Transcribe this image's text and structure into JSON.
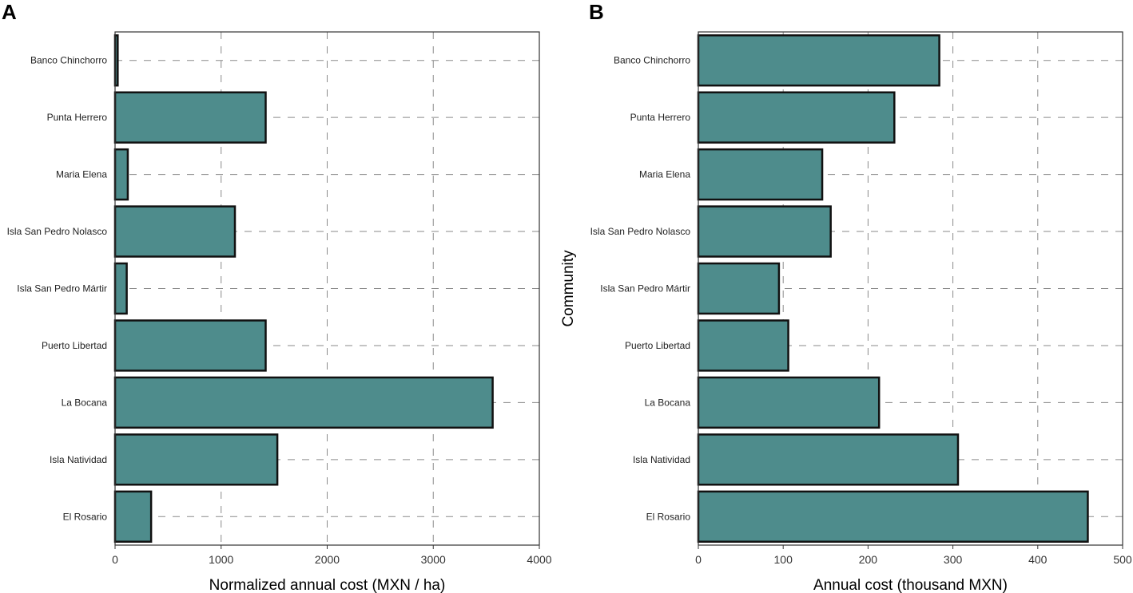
{
  "colors": {
    "bar_fill": "#4e8c8c",
    "bar_stroke": "#111111",
    "grid": "#8a8a8a"
  },
  "chart_data": [
    {
      "panel": "A",
      "type": "bar",
      "orientation": "horizontal",
      "categories": [
        "Banco Chinchorro",
        "Punta Herrero",
        "Maria Elena",
        "Isla San Pedro Nolasco",
        "Isla San Pedro Mártir",
        "Puerto Libertad",
        "La Bocana",
        "Isla Natividad",
        "El Rosario"
      ],
      "values": [
        25,
        1420,
        120,
        1130,
        110,
        1420,
        3560,
        1530,
        340
      ],
      "xlabel": "Normalized annual cost (MXN / ha)",
      "ylabel": "",
      "xlim": [
        0,
        4000
      ],
      "xticks": [
        0,
        1000,
        2000,
        3000,
        4000
      ],
      "xtick_labels": [
        "0",
        "1000",
        "2000",
        "3000",
        "4000"
      ],
      "grid": true
    },
    {
      "panel": "B",
      "type": "bar",
      "orientation": "horizontal",
      "categories": [
        "Banco Chinchorro",
        "Punta Herrero",
        "Maria Elena",
        "Isla San Pedro Nolasco",
        "Isla San Pedro Mártir",
        "Puerto Libertad",
        "La Bocana",
        "Isla Natividad",
        "El Rosario"
      ],
      "values": [
        284,
        231,
        146,
        156,
        95,
        106,
        213,
        306,
        459
      ],
      "xlabel": "Annual cost (thousand MXN)",
      "ylabel": "Community",
      "xlim": [
        0,
        500
      ],
      "xticks": [
        0,
        100,
        200,
        300,
        400,
        500
      ],
      "xtick_labels": [
        "0",
        "100",
        "200",
        "300",
        "400",
        "500"
      ],
      "grid": true
    }
  ]
}
